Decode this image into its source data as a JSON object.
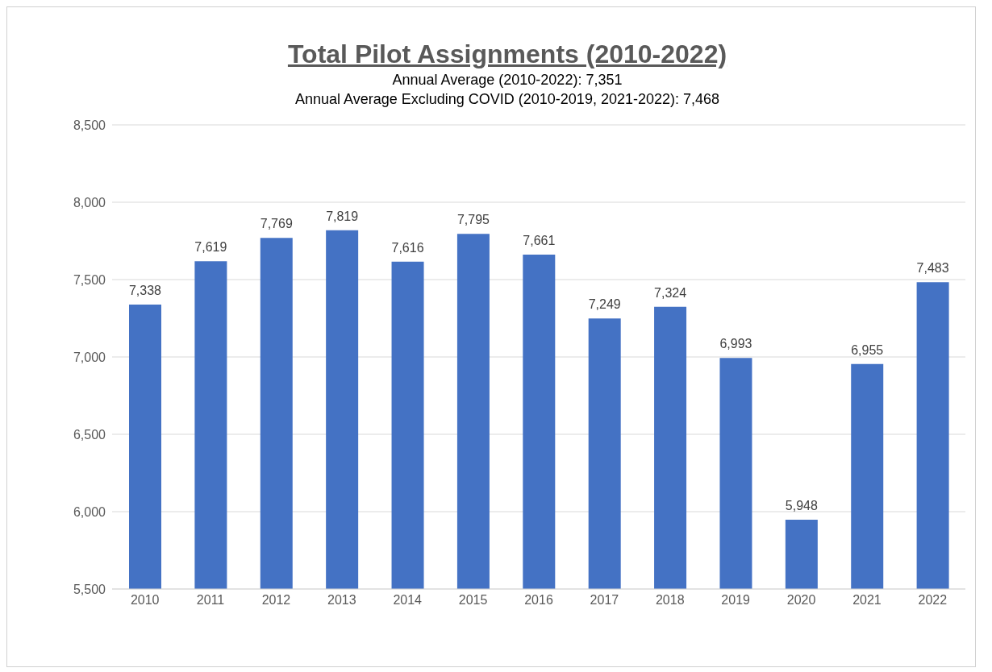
{
  "chart_data": {
    "type": "bar",
    "title": "Total Pilot Assignments (2010-2022)",
    "subtitle": "Annual Average (2010-2022): 7,351",
    "annotations": [
      "Annual Average Excluding COVID (2010-2019, 2021-2022): 7,468"
    ],
    "categories": [
      "2010",
      "2011",
      "2012",
      "2013",
      "2014",
      "2015",
      "2016",
      "2017",
      "2018",
      "2019",
      "2020",
      "2021",
      "2022"
    ],
    "values": [
      7338,
      7619,
      7769,
      7819,
      7616,
      7795,
      7661,
      7249,
      7324,
      6993,
      5948,
      6955,
      7483
    ],
    "value_labels": [
      "7,338",
      "7,619",
      "7,769",
      "7,819",
      "7,616",
      "7,795",
      "7,661",
      "7,249",
      "7,324",
      "6,993",
      "5,948",
      "6,955",
      "7,483"
    ],
    "color": "#4472c4",
    "ylim": [
      5500,
      8500
    ],
    "yticks": [
      {
        "value": 5500,
        "label": "5,500"
      },
      {
        "value": 6000,
        "label": "6,000"
      },
      {
        "value": 6500,
        "label": "6,500"
      },
      {
        "value": 7000,
        "label": "7,000"
      },
      {
        "value": 7500,
        "label": "7,500"
      },
      {
        "value": 8000,
        "label": "8,000"
      },
      {
        "value": 8500,
        "label": "8,500"
      }
    ],
    "grid": "y"
  }
}
